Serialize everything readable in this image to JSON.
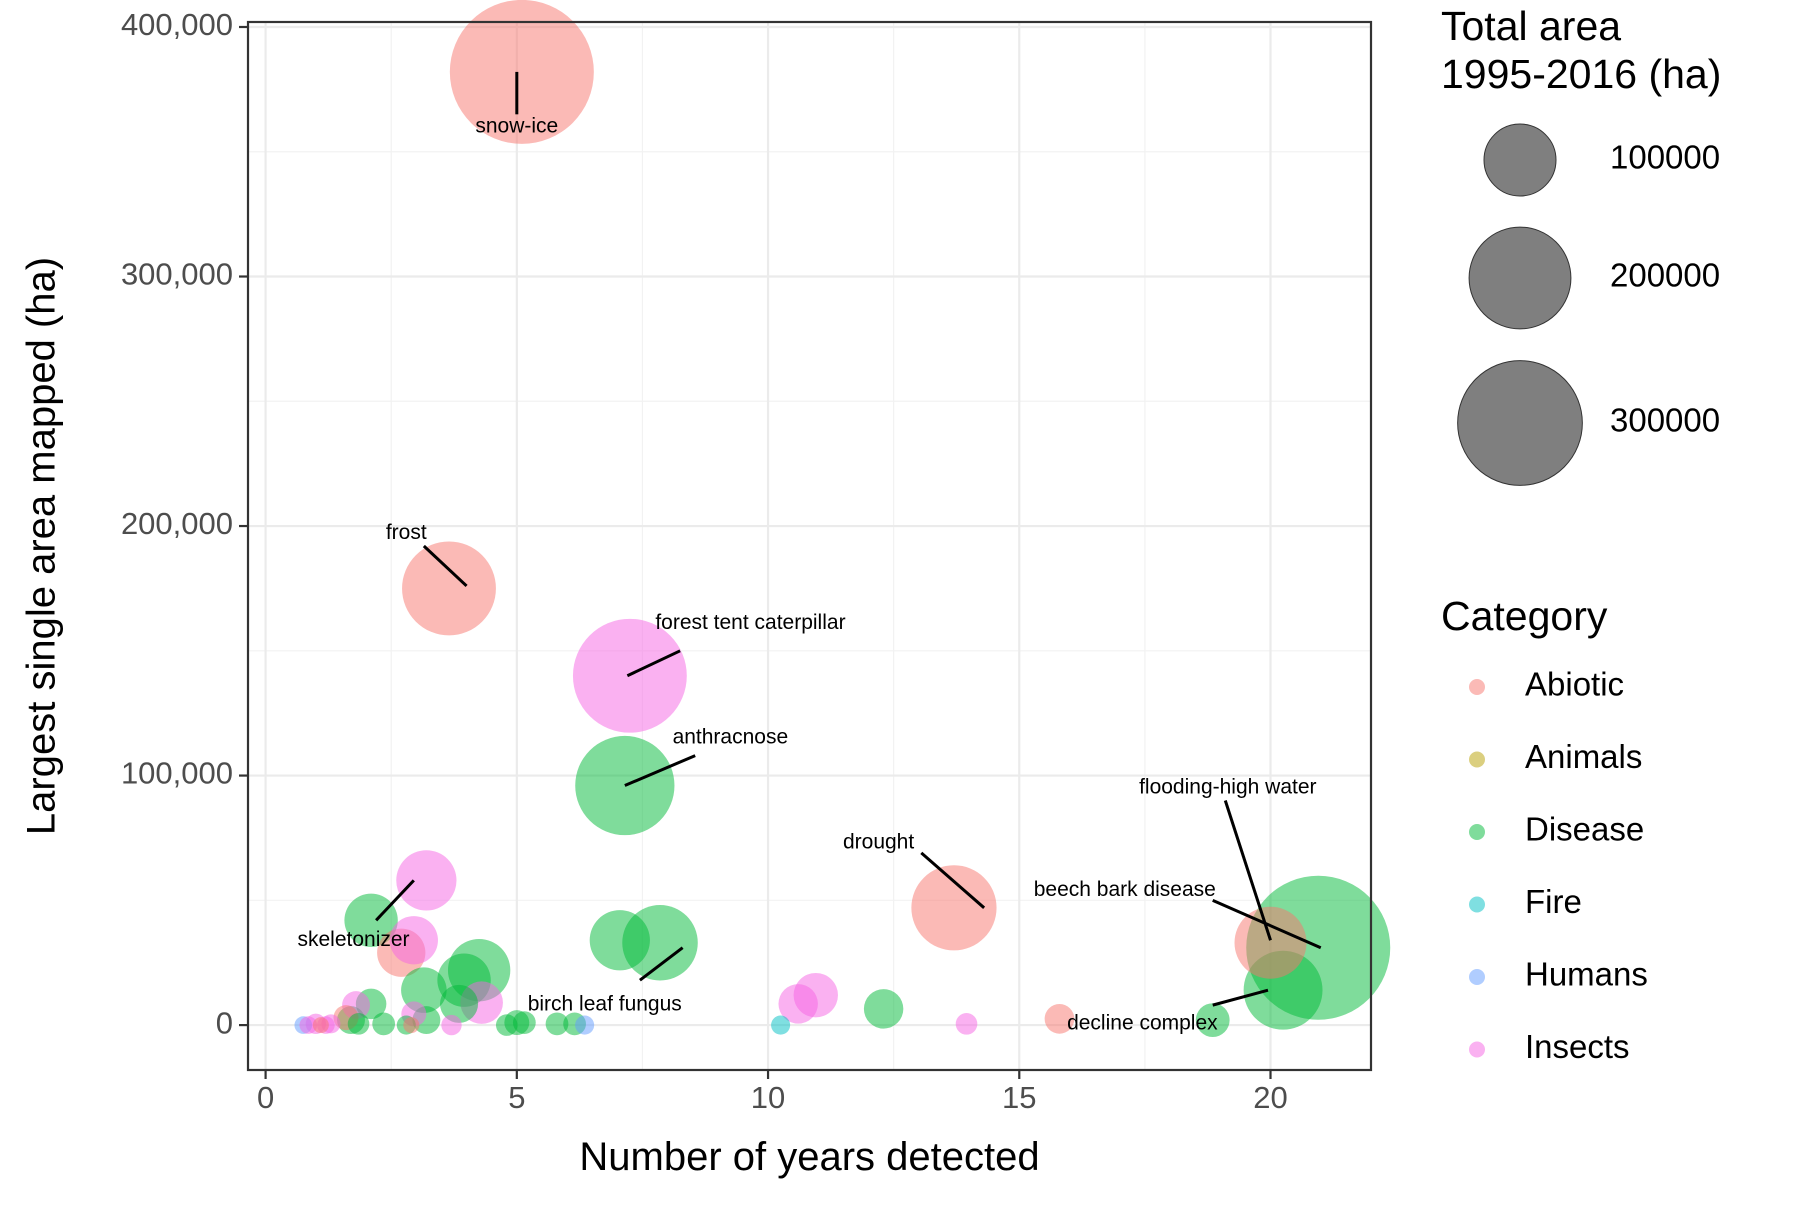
{
  "chart_data": {
    "type": "scatter",
    "xlabel": "Number of years detected",
    "ylabel": "Largest single area mapped (ha)",
    "xlim": [
      -0.35,
      22
    ],
    "ylim": [
      -18000,
      402000
    ],
    "x_ticks": [
      0,
      5,
      10,
      15,
      20
    ],
    "x_tick_labels": [
      "0",
      "5",
      "10",
      "15",
      "20"
    ],
    "y_ticks": [
      0,
      100000,
      200000,
      300000,
      400000
    ],
    "y_tick_labels": [
      "0",
      "100,000",
      "200,000",
      "300,000",
      "400,000"
    ],
    "grid": true,
    "size_legend": {
      "title": [
        "Total area",
        "1995-2016 (ha)"
      ],
      "values": [
        100000,
        200000,
        300000
      ],
      "labels": [
        "100000",
        "200000",
        "300000"
      ]
    },
    "color_legend": {
      "title": "Category",
      "items": [
        {
          "name": "Abiotic",
          "color": "#F8766D"
        },
        {
          "name": "Animals",
          "color": "#B79F00"
        },
        {
          "name": "Disease",
          "color": "#00BA38"
        },
        {
          "name": "Fire",
          "color": "#00BFC4"
        },
        {
          "name": "Humans",
          "color": "#619CFF"
        },
        {
          "name": "Insects",
          "color": "#F564E3"
        }
      ]
    },
    "points": [
      {
        "x": 5.1,
        "y": 382000,
        "total": 400000,
        "category": "Abiotic"
      },
      {
        "x": 3.65,
        "y": 175000,
        "total": 170000,
        "category": "Abiotic"
      },
      {
        "x": 13.7,
        "y": 47000,
        "total": 140000,
        "category": "Abiotic"
      },
      {
        "x": 20.0,
        "y": 33000,
        "total": 100000,
        "category": "Abiotic"
      },
      {
        "x": 2.7,
        "y": 29000,
        "total": 45000,
        "category": "Abiotic"
      },
      {
        "x": 15.8,
        "y": 2500,
        "total": 17000,
        "category": "Abiotic"
      },
      {
        "x": 1.6,
        "y": 3000,
        "total": 12000,
        "category": "Abiotic"
      },
      {
        "x": 1.1,
        "y": 0,
        "total": 4000,
        "category": "Abiotic"
      },
      {
        "x": 2.9,
        "y": 0,
        "total": 4000,
        "category": "Abiotic"
      },
      {
        "x": 20.95,
        "y": 31000,
        "total": 400000,
        "category": "Disease"
      },
      {
        "x": 7.15,
        "y": 96000,
        "total": 190000,
        "category": "Disease"
      },
      {
        "x": 20.25,
        "y": 14000,
        "total": 120000,
        "category": "Disease"
      },
      {
        "x": 7.85,
        "y": 33000,
        "total": 110000,
        "category": "Disease"
      },
      {
        "x": 7.05,
        "y": 34000,
        "total": 70000,
        "category": "Disease"
      },
      {
        "x": 2.1,
        "y": 42000,
        "total": 55000,
        "category": "Disease"
      },
      {
        "x": 4.25,
        "y": 22000,
        "total": 75000,
        "category": "Disease"
      },
      {
        "x": 3.95,
        "y": 18000,
        "total": 55000,
        "category": "Disease"
      },
      {
        "x": 3.15,
        "y": 14000,
        "total": 40000,
        "category": "Disease"
      },
      {
        "x": 12.3,
        "y": 6500,
        "total": 30000,
        "category": "Disease"
      },
      {
        "x": 3.85,
        "y": 8500,
        "total": 28000,
        "category": "Disease"
      },
      {
        "x": 2.1,
        "y": 8500,
        "total": 18000,
        "category": "Disease"
      },
      {
        "x": 18.85,
        "y": 2000,
        "total": 22000,
        "category": "Disease"
      },
      {
        "x": 1.7,
        "y": 2000,
        "total": 15000,
        "category": "Disease"
      },
      {
        "x": 3.2,
        "y": 2000,
        "total": 15000,
        "category": "Disease"
      },
      {
        "x": 5.0,
        "y": 1000,
        "total": 12000,
        "category": "Disease"
      },
      {
        "x": 5.15,
        "y": 1000,
        "total": 10000,
        "category": "Disease"
      },
      {
        "x": 4.8,
        "y": 0,
        "total": 9000,
        "category": "Disease"
      },
      {
        "x": 5.8,
        "y": 500,
        "total": 10000,
        "category": "Disease"
      },
      {
        "x": 6.15,
        "y": 500,
        "total": 10000,
        "category": "Disease"
      },
      {
        "x": 2.35,
        "y": 500,
        "total": 10000,
        "category": "Disease"
      },
      {
        "x": 1.85,
        "y": 500,
        "total": 9000,
        "category": "Disease"
      },
      {
        "x": 2.8,
        "y": 0,
        "total": 7000,
        "category": "Disease"
      },
      {
        "x": 10.25,
        "y": 0,
        "total": 7000,
        "category": "Fire"
      },
      {
        "x": 6.35,
        "y": 0,
        "total": 7000,
        "category": "Humans"
      },
      {
        "x": 0.75,
        "y": 0,
        "total": 6000,
        "category": "Humans"
      },
      {
        "x": 7.25,
        "y": 140000,
        "total": 250000,
        "category": "Insects"
      },
      {
        "x": 3.2,
        "y": 58000,
        "total": 70000,
        "category": "Insects"
      },
      {
        "x": 2.95,
        "y": 34000,
        "total": 45000,
        "category": "Insects"
      },
      {
        "x": 10.95,
        "y": 12000,
        "total": 38000,
        "category": "Insects"
      },
      {
        "x": 10.6,
        "y": 8500,
        "total": 30000,
        "category": "Insects"
      },
      {
        "x": 4.3,
        "y": 9000,
        "total": 35000,
        "category": "Insects"
      },
      {
        "x": 1.8,
        "y": 8000,
        "total": 15000,
        "category": "Insects"
      },
      {
        "x": 2.95,
        "y": 4500,
        "total": 12000,
        "category": "Insects"
      },
      {
        "x": 13.95,
        "y": 500,
        "total": 9000,
        "category": "Insects"
      },
      {
        "x": 3.7,
        "y": 0,
        "total": 8000,
        "category": "Insects"
      },
      {
        "x": 1.0,
        "y": 500,
        "total": 8000,
        "category": "Insects"
      },
      {
        "x": 1.3,
        "y": 500,
        "total": 7000,
        "category": "Insects"
      },
      {
        "x": 0.85,
        "y": 0,
        "total": 6000,
        "category": "Insects"
      },
      {
        "x": 1.2,
        "y": 0,
        "total": 6000,
        "category": "Insects"
      }
    ],
    "annotations": [
      {
        "text": "snow-ice",
        "x": 5.0,
        "y": 360000,
        "line": [
          [
            5.0,
            382000
          ],
          [
            5.0,
            365000
          ]
        ]
      },
      {
        "text": "frost",
        "x": 2.8,
        "y": 197000,
        "line": [
          [
            4.0,
            176000
          ],
          [
            3.15,
            192000
          ]
        ]
      },
      {
        "text": "forest tent caterpillar",
        "x": 9.65,
        "y": 161000,
        "line": [
          [
            7.2,
            140000
          ],
          [
            8.25,
            150000
          ]
        ]
      },
      {
        "text": "anthracnose",
        "x": 9.25,
        "y": 115000,
        "line": [
          [
            7.15,
            96000
          ],
          [
            8.55,
            108000
          ]
        ]
      },
      {
        "text": "drought",
        "x": 12.2,
        "y": 73000,
        "line": [
          [
            13.05,
            69000
          ],
          [
            14.3,
            47000
          ]
        ]
      },
      {
        "text": "flooding-high water",
        "x": 19.15,
        "y": 95000,
        "line": [
          [
            19.1,
            90000
          ],
          [
            20.0,
            34000
          ]
        ]
      },
      {
        "text": "beech bark disease",
        "x": 17.1,
        "y": 54000,
        "line": [
          [
            18.85,
            50000
          ],
          [
            21.0,
            31000
          ]
        ]
      },
      {
        "text": "skeletonizer",
        "x": 1.75,
        "y": 34000,
        "line": [
          [
            2.95,
            58000
          ],
          [
            2.2,
            42000
          ]
        ]
      },
      {
        "text": "birch leaf fungus",
        "x": 6.75,
        "y": 8000,
        "line": [
          [
            7.45,
            18000
          ],
          [
            8.3,
            31000
          ]
        ]
      },
      {
        "text": "decline complex",
        "x": 17.45,
        "y": 500,
        "line": [
          [
            18.85,
            8000
          ],
          [
            19.95,
            14000
          ]
        ]
      }
    ]
  }
}
